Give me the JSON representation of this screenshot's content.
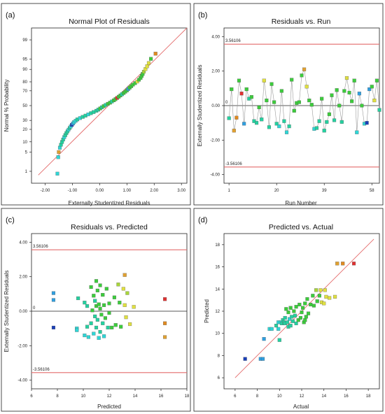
{
  "chart_data": [
    {
      "id": "a",
      "panel_label": "(a)",
      "type": "scatter",
      "title": "Normal Plot of Residuals",
      "xlabel": "Externally Studentized Residuals",
      "ylabel": "Normal % Probability",
      "xlim": [
        -2.5,
        3.2
      ],
      "xticks": [
        "-2.00",
        "-1.00",
        "0.00",
        "1.00",
        "2.00",
        "3.00"
      ],
      "yticks": [
        "1",
        "5",
        "10",
        "20",
        "30",
        "50",
        "70",
        "80",
        "90",
        "95",
        "99"
      ],
      "reference_line": {
        "from": [
          -2.25,
          0.7
        ],
        "to": [
          3.2,
          99.7
        ]
      },
      "points": [
        [
          -1.55,
          0.8,
          "#2fd6d6"
        ],
        [
          -1.52,
          3.4,
          "#2fd6d6"
        ],
        [
          -1.5,
          5.0,
          "#e0a030"
        ],
        [
          -1.46,
          6.8,
          "#2fd6d6"
        ],
        [
          -1.42,
          8.3,
          "#24d1a0"
        ],
        [
          -1.38,
          9.9,
          "#24d1a0"
        ],
        [
          -1.34,
          11.5,
          "#24d1a0"
        ],
        [
          -1.3,
          13.2,
          "#2fd6d6"
        ],
        [
          -1.26,
          14.8,
          "#24d1a0"
        ],
        [
          -1.22,
          16.5,
          "#24d1a0"
        ],
        [
          -1.18,
          18.1,
          "#24d1a0"
        ],
        [
          -1.14,
          19.7,
          "#2fd6d6"
        ],
        [
          -1.1,
          21.4,
          "#24d1a0"
        ],
        [
          -1.06,
          23.0,
          "#2fd6d6"
        ],
        [
          -1.02,
          24.7,
          "#1a3fb8"
        ],
        [
          -0.98,
          26.3,
          "#2f9fe0"
        ],
        [
          -0.94,
          27.9,
          "#2fd6d6"
        ],
        [
          -0.88,
          29.6,
          "#2fd6d6"
        ],
        [
          -0.82,
          31.2,
          "#24d1a0"
        ],
        [
          -0.72,
          32.9,
          "#2fd6d6"
        ],
        [
          -0.62,
          34.5,
          "#24d1a0"
        ],
        [
          -0.52,
          36.1,
          "#24d1a0"
        ],
        [
          -0.42,
          37.8,
          "#2fd6d6"
        ],
        [
          -0.32,
          39.4,
          "#24d1a0"
        ],
        [
          -0.22,
          41.0,
          "#24d1a0"
        ],
        [
          -0.12,
          42.7,
          "#24d1a0"
        ],
        [
          -0.05,
          44.3,
          "#24d1a0"
        ],
        [
          0.02,
          46.0,
          "#3ccc3c"
        ],
        [
          0.08,
          47.6,
          "#24d1a0"
        ],
        [
          0.15,
          49.2,
          "#3ccc3c"
        ],
        [
          0.22,
          50.9,
          "#24d1a0"
        ],
        [
          0.3,
          52.5,
          "#3ccc3c"
        ],
        [
          0.38,
          54.1,
          "#3ccc3c"
        ],
        [
          0.45,
          55.8,
          "#24d1a0"
        ],
        [
          0.52,
          57.4,
          "#3ccc3c"
        ],
        [
          0.58,
          59.0,
          "#3ccc3c"
        ],
        [
          0.64,
          60.7,
          "#e03030"
        ],
        [
          0.7,
          62.3,
          "#3ccc3c"
        ],
        [
          0.76,
          64.0,
          "#3ccc3c"
        ],
        [
          0.82,
          65.6,
          "#24d1a0"
        ],
        [
          0.88,
          67.2,
          "#3ccc3c"
        ],
        [
          0.94,
          68.9,
          "#3ccc3c"
        ],
        [
          1.0,
          70.5,
          "#3ccc3c"
        ],
        [
          1.05,
          72.2,
          "#2f9fe0"
        ],
        [
          1.1,
          73.8,
          "#3ccc3c"
        ],
        [
          1.16,
          75.4,
          "#3ccc3c"
        ],
        [
          1.22,
          77.1,
          "#3ccc3c"
        ],
        [
          1.3,
          78.7,
          "#3ccc3c"
        ],
        [
          1.38,
          80.3,
          "#e0e040"
        ],
        [
          1.44,
          82.0,
          "#3ccc3c"
        ],
        [
          1.5,
          83.6,
          "#3ccc3c"
        ],
        [
          1.54,
          85.3,
          "#3ccc3c"
        ],
        [
          1.58,
          86.9,
          "#3ccc3c"
        ],
        [
          1.62,
          88.5,
          "#a8d63a"
        ],
        [
          1.68,
          90.2,
          "#e0e040"
        ],
        [
          1.74,
          91.8,
          "#e0e040"
        ],
        [
          1.8,
          93.4,
          "#e0e040"
        ],
        [
          1.88,
          95.1,
          "#3ccc3c"
        ],
        [
          2.05,
          96.7,
          "#e08a20"
        ]
      ]
    },
    {
      "id": "b",
      "panel_label": "(b)",
      "type": "line",
      "title": "Residuals vs. Run",
      "xlabel": "Run Number",
      "ylabel": "Externally Studentized Residuals",
      "xlim": [
        -1,
        61
      ],
      "ylim": [
        -4.5,
        4.5
      ],
      "xticks": [
        "1",
        "20",
        "39",
        "58"
      ],
      "yticks": [
        "-4.00",
        "-2.00",
        "0.00",
        "2.00",
        "4.00"
      ],
      "ref_upper": "3.56106",
      "ref_lower": "-3.56106",
      "zero_label": "0",
      "points": [
        [
          1,
          -0.73,
          "#24d1a0"
        ],
        [
          2,
          0.95,
          "#3ccc3c"
        ],
        [
          3,
          -1.45,
          "#e0a030"
        ],
        [
          4,
          -0.7,
          "#e08a20"
        ],
        [
          5,
          1.45,
          "#3ccc3c"
        ],
        [
          6,
          0.7,
          "#e03030"
        ],
        [
          7,
          -1.05,
          "#2f9fe0"
        ],
        [
          8,
          0.95,
          "#3ccc3c"
        ],
        [
          9,
          0.4,
          "#24d1a0"
        ],
        [
          10,
          0.5,
          "#3ccc3c"
        ],
        [
          11,
          -0.9,
          "#24d1a0"
        ],
        [
          12,
          -1.0,
          "#24d1a0"
        ],
        [
          13,
          -0.1,
          "#3ccc3c"
        ],
        [
          14,
          -0.8,
          "#24d1a0"
        ],
        [
          15,
          1.45,
          "#e0e040"
        ],
        [
          16,
          0.3,
          "#3ccc3c"
        ],
        [
          17,
          -1.25,
          "#24d1a0"
        ],
        [
          18,
          1.25,
          "#3ccc3c"
        ],
        [
          19,
          0.2,
          "#3ccc3c"
        ],
        [
          20,
          -1.05,
          "#24d1a0"
        ],
        [
          21,
          -1.2,
          "#2fd6d6"
        ],
        [
          22,
          0.85,
          "#3ccc3c"
        ],
        [
          23,
          -0.9,
          "#24d1a0"
        ],
        [
          24,
          -1.55,
          "#2fd6d6"
        ],
        [
          25,
          -1.2,
          "#24d1a0"
        ],
        [
          26,
          1.5,
          "#3ccc3c"
        ],
        [
          27,
          -0.3,
          "#3ccc3c"
        ],
        [
          28,
          0.15,
          "#3ccc3c"
        ],
        [
          29,
          0.2,
          "#3ccc3c"
        ],
        [
          30,
          1.75,
          "#3ccc3c"
        ],
        [
          31,
          2.1,
          "#e0a030"
        ],
        [
          32,
          1.1,
          "#e0e040"
        ],
        [
          33,
          0.3,
          "#3ccc3c"
        ],
        [
          34,
          0.05,
          "#3ccc3c"
        ],
        [
          35,
          -1.35,
          "#2fd6d6"
        ],
        [
          36,
          -1.3,
          "#24d1a0"
        ],
        [
          37,
          -0.9,
          "#24d1a0"
        ],
        [
          38,
          0.4,
          "#3ccc3c"
        ],
        [
          39,
          -1.45,
          "#24d1a0"
        ],
        [
          40,
          -0.95,
          "#24d1a0"
        ],
        [
          41,
          -0.5,
          "#3ccc3c"
        ],
        [
          42,
          0.6,
          "#3ccc3c"
        ],
        [
          43,
          -0.85,
          "#24d1a0"
        ],
        [
          44,
          0.9,
          "#3ccc3c"
        ],
        [
          45,
          0.0,
          "#3ccc3c"
        ],
        [
          46,
          -0.95,
          "#24d1a0"
        ],
        [
          47,
          0.85,
          "#3ccc3c"
        ],
        [
          48,
          1.6,
          "#e0e040"
        ],
        [
          49,
          0.75,
          "#3ccc3c"
        ],
        [
          50,
          0.25,
          "#3ccc3c"
        ],
        [
          51,
          1.45,
          "#3ccc3c"
        ],
        [
          52,
          -1.55,
          "#2fd6d6"
        ],
        [
          53,
          0.7,
          "#2f9fe0"
        ],
        [
          54,
          0.0,
          "#3ccc3c"
        ],
        [
          55,
          -1.05,
          "#2fd6d6"
        ],
        [
          56,
          -1.0,
          "#1a3fb8"
        ],
        [
          57,
          0.95,
          "#2f9fe0"
        ],
        [
          58,
          1.1,
          "#3ccc3c"
        ],
        [
          59,
          0.3,
          "#e0e040"
        ],
        [
          60,
          1.45,
          "#3ccc3c"
        ],
        [
          61,
          -0.25,
          "#24d1a0"
        ]
      ]
    },
    {
      "id": "c",
      "panel_label": "(c)",
      "type": "scatter",
      "title": "Residuals vs. Predicted",
      "xlabel": "Predicted",
      "ylabel": "Externally Studentized Residuals",
      "xlim": [
        6,
        18
      ],
      "ylim": [
        -4.5,
        4.5
      ],
      "xticks": [
        "6",
        "8",
        "10",
        "12",
        "14",
        "16",
        "18"
      ],
      "yticks": [
        "-4.00",
        "-2.00",
        "0.00",
        "2.00",
        "4.00"
      ],
      "ref_upper": "3.56106",
      "ref_lower": "-3.56106",
      "zero_label": "0",
      "points": [
        [
          7.7,
          1.05,
          "#2f9fe0"
        ],
        [
          7.7,
          0.65,
          "#2f9fe0"
        ],
        [
          7.7,
          -0.95,
          "#1a3fb8"
        ],
        [
          9.5,
          -1.0,
          "#2fd6d6"
        ],
        [
          9.5,
          -1.1,
          "#2fd6d6"
        ],
        [
          9.6,
          0.75,
          "#24d1a0"
        ],
        [
          10.1,
          0.5,
          "#24d1a0"
        ],
        [
          10.1,
          -1.4,
          "#2fd6d6"
        ],
        [
          10.3,
          0.3,
          "#24d1a0"
        ],
        [
          10.3,
          -0.9,
          "#24d1a0"
        ],
        [
          10.4,
          -1.5,
          "#2fd6d6"
        ],
        [
          10.6,
          1.4,
          "#3ccc3c"
        ],
        [
          10.6,
          -0.7,
          "#24d1a0"
        ],
        [
          10.7,
          0.05,
          "#3ccc3c"
        ],
        [
          10.8,
          0.9,
          "#3ccc3c"
        ],
        [
          10.8,
          -1.3,
          "#2fd6d6"
        ],
        [
          10.9,
          0.6,
          "#24d1a0"
        ],
        [
          10.9,
          -0.3,
          "#24d1a0"
        ],
        [
          11.0,
          1.75,
          "#3ccc3c"
        ],
        [
          11.0,
          0.3,
          "#3ccc3c"
        ],
        [
          11.0,
          -0.95,
          "#24d1a0"
        ],
        [
          11.1,
          1.2,
          "#3ccc3c"
        ],
        [
          11.1,
          -0.5,
          "#24d1a0"
        ],
        [
          11.2,
          0.4,
          "#3ccc3c"
        ],
        [
          11.2,
          -1.55,
          "#2fd6d6"
        ],
        [
          11.3,
          1.5,
          "#3ccc3c"
        ],
        [
          11.3,
          0.15,
          "#3ccc3c"
        ],
        [
          11.3,
          -1.2,
          "#24d1a0"
        ],
        [
          11.4,
          -0.2,
          "#3ccc3c"
        ],
        [
          11.5,
          0.95,
          "#3ccc3c"
        ],
        [
          11.5,
          -0.7,
          "#24d1a0"
        ],
        [
          11.6,
          0.35,
          "#3ccc3c"
        ],
        [
          11.6,
          -1.45,
          "#2fd6d6"
        ],
        [
          11.7,
          -0.4,
          "#3ccc3c"
        ],
        [
          11.8,
          1.3,
          "#3ccc3c"
        ],
        [
          11.9,
          -0.95,
          "#24d1a0"
        ],
        [
          12.0,
          0.45,
          "#3ccc3c"
        ],
        [
          12.0,
          -0.1,
          "#3ccc3c"
        ],
        [
          12.2,
          -0.95,
          "#3ccc3c"
        ],
        [
          12.4,
          0.8,
          "#3ccc3c"
        ],
        [
          12.5,
          -0.8,
          "#3ccc3c"
        ],
        [
          12.7,
          1.55,
          "#a8d63a"
        ],
        [
          12.8,
          0.5,
          "#3ccc3c"
        ],
        [
          12.9,
          -0.9,
          "#3ccc3c"
        ],
        [
          13.1,
          1.3,
          "#e0e040"
        ],
        [
          13.2,
          2.1,
          "#e0a030"
        ],
        [
          13.2,
          0.35,
          "#e0e040"
        ],
        [
          13.3,
          -0.35,
          "#e0e040"
        ],
        [
          13.4,
          1.05,
          "#a8d63a"
        ],
        [
          13.6,
          -0.75,
          "#e0e040"
        ],
        [
          13.9,
          0.25,
          "#e0e040"
        ],
        [
          16.3,
          0.7,
          "#e03030"
        ],
        [
          16.3,
          -0.7,
          "#e08a20"
        ],
        [
          16.3,
          -1.5,
          "#e0a030"
        ]
      ]
    },
    {
      "id": "d",
      "panel_label": "(d)",
      "type": "scatter",
      "title": "Predicted vs. Actual",
      "xlabel": "Actual",
      "ylabel": "Predicted",
      "xlim": [
        5,
        19
      ],
      "ylim": [
        5,
        19
      ],
      "xticks": [
        "6",
        "8",
        "10",
        "12",
        "14",
        "16",
        "18"
      ],
      "yticks": [
        "6",
        "8",
        "10",
        "12",
        "14",
        "16",
        "18"
      ],
      "reference_line": {
        "from": [
          6,
          6
        ],
        "to": [
          18.5,
          18.5
        ]
      },
      "points": [
        [
          6.9,
          7.7,
          "#1a3fb8"
        ],
        [
          8.3,
          7.7,
          "#2f9fe0"
        ],
        [
          8.5,
          7.7,
          "#2f9fe0"
        ],
        [
          8.6,
          9.5,
          "#2f9fe0"
        ],
        [
          9.1,
          10.4,
          "#2fd6d6"
        ],
        [
          9.3,
          10.4,
          "#2fd6d6"
        ],
        [
          9.7,
          10.7,
          "#24d1a0"
        ],
        [
          9.9,
          11.0,
          "#2fd6d6"
        ],
        [
          9.9,
          10.4,
          "#2fd6d6"
        ],
        [
          10.0,
          9.4,
          "#24d1a0"
        ],
        [
          10.1,
          11.0,
          "#2fd6d6"
        ],
        [
          10.2,
          10.9,
          "#24d1a0"
        ],
        [
          10.3,
          11.2,
          "#24d1a0"
        ],
        [
          10.4,
          11.0,
          "#24d1a0"
        ],
        [
          10.5,
          11.4,
          "#24d1a0"
        ],
        [
          10.5,
          10.9,
          "#24d1a0"
        ],
        [
          10.6,
          12.2,
          "#3ccc3c"
        ],
        [
          10.7,
          11.0,
          "#24d1a0"
        ],
        [
          10.8,
          11.9,
          "#3ccc3c"
        ],
        [
          10.8,
          10.6,
          "#24d1a0"
        ],
        [
          10.9,
          11.3,
          "#2fd6d6"
        ],
        [
          11.0,
          12.3,
          "#3ccc3c"
        ],
        [
          11.0,
          10.7,
          "#24d1a0"
        ],
        [
          11.1,
          11.5,
          "#24d1a0"
        ],
        [
          11.2,
          11.1,
          "#24d1a0"
        ],
        [
          11.3,
          12.0,
          "#3ccc3c"
        ],
        [
          11.4,
          11.6,
          "#24d1a0"
        ],
        [
          11.5,
          10.9,
          "#24d1a0"
        ],
        [
          11.5,
          12.4,
          "#3ccc3c"
        ],
        [
          11.7,
          11.2,
          "#3ccc3c"
        ],
        [
          11.8,
          12.6,
          "#3ccc3c"
        ],
        [
          11.9,
          11.4,
          "#3ccc3c"
        ],
        [
          12.0,
          11.9,
          "#3ccc3c"
        ],
        [
          12.1,
          12.3,
          "#3ccc3c"
        ],
        [
          12.2,
          11.0,
          "#3ccc3c"
        ],
        [
          12.3,
          12.7,
          "#3ccc3c"
        ],
        [
          12.3,
          11.2,
          "#3ccc3c"
        ],
        [
          12.4,
          11.5,
          "#3ccc3c"
        ],
        [
          12.5,
          13.1,
          "#3ccc3c"
        ],
        [
          12.6,
          11.8,
          "#3ccc3c"
        ],
        [
          12.8,
          12.6,
          "#3ccc3c"
        ],
        [
          13.0,
          13.4,
          "#3ccc3c"
        ],
        [
          13.1,
          12.5,
          "#3ccc3c"
        ],
        [
          13.3,
          13.9,
          "#a8d63a"
        ],
        [
          13.4,
          12.9,
          "#3ccc3c"
        ],
        [
          13.6,
          13.4,
          "#3ccc3c"
        ],
        [
          13.7,
          13.9,
          "#e0e040"
        ],
        [
          13.8,
          12.8,
          "#e0e040"
        ],
        [
          14.0,
          12.7,
          "#e0e040"
        ],
        [
          14.1,
          13.9,
          "#e0e040"
        ],
        [
          14.2,
          13.3,
          "#e0e040"
        ],
        [
          14.5,
          13.2,
          "#e0e040"
        ],
        [
          15.0,
          13.3,
          "#e0e040"
        ],
        [
          15.2,
          16.3,
          "#e0a030"
        ],
        [
          15.7,
          16.3,
          "#e08a20"
        ],
        [
          16.7,
          16.3,
          "#e03030"
        ]
      ]
    }
  ]
}
